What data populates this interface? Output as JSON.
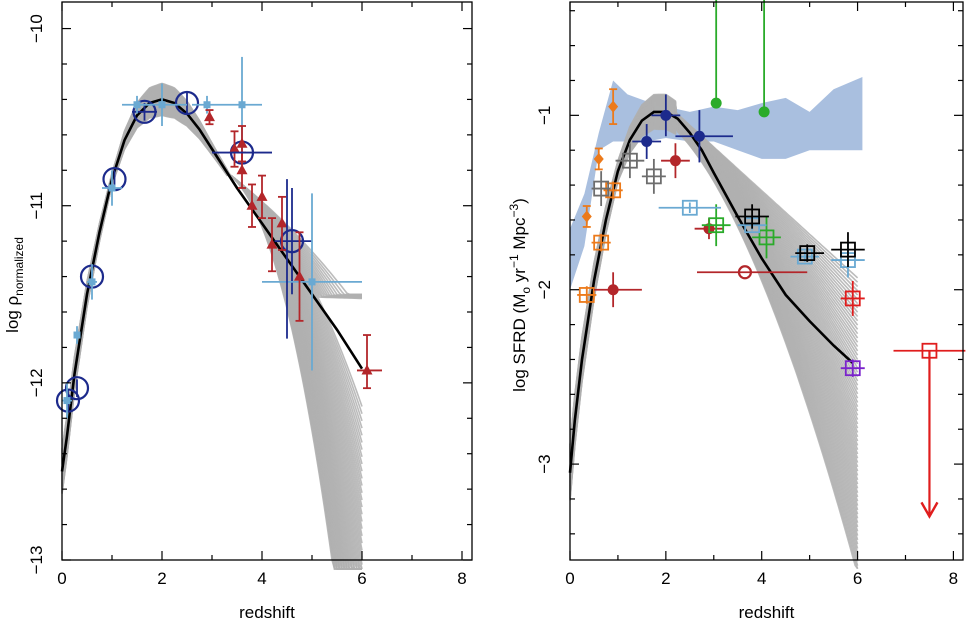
{
  "chart_data": [
    {
      "type": "scatter",
      "xlabel": "redshift",
      "ylabel": "log ρ",
      "ylabel_sub": "normalized",
      "xlim": [
        0,
        8.2
      ],
      "ylim": [
        -13,
        -9.85
      ],
      "xticks": [
        0,
        2,
        4,
        6,
        8
      ],
      "xtick_labels": [
        "0",
        "2",
        "4",
        "6",
        "8"
      ],
      "yticks": [
        -13,
        -12,
        -11,
        -10
      ],
      "ytick_labels": [
        "−13",
        "−12",
        "−11",
        "−10"
      ],
      "grid": false,
      "colors": {
        "model_band": "#b0b0b0",
        "best_fit": "#000000",
        "circles": "#1c2a8c",
        "light_blue": "#6aa9d2",
        "triangles": "#b3262a",
        "navy": "#1c2a8c"
      },
      "best_fit": {
        "x": [
          0.0,
          0.1,
          0.25,
          0.5,
          0.75,
          1.0,
          1.25,
          1.5,
          1.75,
          2.0,
          2.25,
          2.5,
          2.75,
          3.0,
          3.5,
          4.0,
          4.5,
          5.0,
          5.5,
          6.0
        ],
        "y": [
          -12.5,
          -12.3,
          -11.95,
          -11.5,
          -11.15,
          -10.85,
          -10.63,
          -10.49,
          -10.42,
          -10.4,
          -10.42,
          -10.48,
          -10.57,
          -10.68,
          -10.9,
          -11.1,
          -11.3,
          -11.5,
          -11.7,
          -11.92
        ]
      },
      "series": [
        {
          "marker": "open-circle",
          "color": "#1c2a8c",
          "points": [
            {
              "x": 0.12,
              "y": -12.1,
              "xerr": [
                0.0,
                0.0
              ],
              "yerr": [
                0.06,
                0.06
              ]
            },
            {
              "x": 0.3,
              "y": -12.03,
              "xerr": [
                0.0,
                0.0
              ],
              "yerr": [
                0.05,
                0.05
              ]
            },
            {
              "x": 0.6,
              "y": -11.4,
              "xerr": [
                0.0,
                0.0
              ],
              "yerr": [
                0.05,
                0.05
              ]
            },
            {
              "x": 1.05,
              "y": -10.85,
              "xerr": [
                0.0,
                0.0
              ],
              "yerr": [
                0.05,
                0.05
              ]
            },
            {
              "x": 1.65,
              "y": -10.47,
              "xerr": [
                0.25,
                0.25
              ],
              "yerr": [
                0.05,
                0.05
              ]
            },
            {
              "x": 2.5,
              "y": -10.42,
              "xerr": [
                0.0,
                0.0
              ],
              "yerr": [
                0.06,
                0.06
              ]
            },
            {
              "x": 3.6,
              "y": -10.7,
              "xerr": [
                0.0,
                0.0
              ],
              "yerr": [
                0.05,
                0.05
              ]
            },
            {
              "x": 4.6,
              "y": -11.2,
              "xerr": [
                0.35,
                0.4
              ],
              "yerr": [
                0.3,
                0.3
              ]
            }
          ]
        },
        {
          "marker": "filled-square",
          "color": "#6aa9d2",
          "points": [
            {
              "x": 0.1,
              "y": -12.1,
              "xerr": [
                0.1,
                0.1
              ],
              "yerr": [
                0.1,
                0.1
              ]
            },
            {
              "x": 0.3,
              "y": -11.73,
              "xerr": [
                0.05,
                0.05
              ],
              "yerr": [
                0.05,
                0.05
              ]
            },
            {
              "x": 0.6,
              "y": -11.43,
              "xerr": [
                0.1,
                0.1
              ],
              "yerr": [
                0.1,
                0.1
              ]
            },
            {
              "x": 1.0,
              "y": -10.9,
              "xerr": [
                0.2,
                0.2
              ],
              "yerr": [
                0.1,
                0.1
              ]
            },
            {
              "x": 1.5,
              "y": -10.43,
              "xerr": [
                0.3,
                0.3
              ],
              "yerr": [
                0.05,
                0.05
              ]
            },
            {
              "x": 2.0,
              "y": -10.43,
              "xerr": [
                0.5,
                0.5
              ],
              "yerr": [
                0.12,
                0.12
              ]
            },
            {
              "x": 2.9,
              "y": -10.43,
              "xerr": [
                0.3,
                0.3
              ],
              "yerr": [
                0.05,
                0.05
              ]
            },
            {
              "x": 3.6,
              "y": -10.43,
              "xerr": [
                0.4,
                0.4
              ],
              "yerr": [
                0.27,
                0.27
              ]
            },
            {
              "x": 5.0,
              "y": -11.43,
              "xerr": [
                1.0,
                1.0
              ],
              "yerr": [
                0.5,
                0.5
              ]
            }
          ]
        },
        {
          "marker": "filled-triangle",
          "color": "#b3262a",
          "points": [
            {
              "x": 2.95,
              "y": -10.5,
              "xerr": [
                0.0,
                0.0
              ],
              "yerr": [
                0.04,
                0.04
              ]
            },
            {
              "x": 3.45,
              "y": -10.68,
              "xerr": [
                0.0,
                0.0
              ],
              "yerr": [
                0.1,
                0.1
              ]
            },
            {
              "x": 3.6,
              "y": -10.65,
              "xerr": [
                0.0,
                0.0
              ],
              "yerr": [
                0.1,
                0.1
              ]
            },
            {
              "x": 3.6,
              "y": -10.8,
              "xerr": [
                0.0,
                0.0
              ],
              "yerr": [
                0.1,
                0.1
              ]
            },
            {
              "x": 3.8,
              "y": -11.0,
              "xerr": [
                0.0,
                0.0
              ],
              "yerr": [
                0.12,
                0.12
              ]
            },
            {
              "x": 4.0,
              "y": -10.95,
              "xerr": [
                0.0,
                0.0
              ],
              "yerr": [
                0.12,
                0.12
              ]
            },
            {
              "x": 4.2,
              "y": -11.22,
              "xerr": [
                0.0,
                0.0
              ],
              "yerr": [
                0.15,
                0.15
              ]
            },
            {
              "x": 4.4,
              "y": -11.1,
              "xerr": [
                0.0,
                0.0
              ],
              "yerr": [
                0.15,
                0.15
              ]
            },
            {
              "x": 4.75,
              "y": -11.4,
              "xerr": [
                0.0,
                0.0
              ],
              "yerr": [
                0.25,
                0.25
              ]
            },
            {
              "x": 6.1,
              "y": -11.93,
              "xerr": [
                0.2,
                0.3
              ],
              "yerr": [
                0.1,
                0.2
              ]
            }
          ]
        },
        {
          "marker": "cross-only",
          "color": "#1c2a8c",
          "points": [
            {
              "x": 3.6,
              "y": -10.7,
              "xerr": [
                0.6,
                0.6
              ],
              "yerr": [
                0.0,
                0.0
              ]
            },
            {
              "x": 4.5,
              "y": -11.3,
              "xerr": [
                0.0,
                0.0
              ],
              "yerr": [
                0.45,
                0.45
              ]
            }
          ]
        }
      ]
    },
    {
      "type": "scatter",
      "xlabel": "redshift",
      "ylabel": "log SFRD (Mₒ yr⁻¹ Mpc⁻³)",
      "ylabel_parts": {
        "prefix": "log SFRD (M",
        "sub": "o",
        "mid1": " yr",
        "sup1": "−1",
        "mid2": " Mpc",
        "sup2": "−3",
        "suffix": ")"
      },
      "xlim": [
        0,
        8.2
      ],
      "ylim": [
        -3.55,
        -0.35
      ],
      "xticks": [
        0,
        2,
        4,
        6,
        8
      ],
      "xtick_labels": [
        "0",
        "2",
        "4",
        "6",
        "8"
      ],
      "yticks": [
        -3,
        -2,
        -1
      ],
      "ytick_labels": [
        "−3",
        "−2",
        "−1"
      ],
      "grid": false,
      "colors": {
        "model_band": "#b0b0b0",
        "blue_band": "#a9bfdf",
        "best_fit": "#000000"
      },
      "best_fit": {
        "x": [
          0.0,
          0.1,
          0.25,
          0.5,
          0.75,
          1.0,
          1.25,
          1.5,
          1.75,
          2.0,
          2.25,
          2.5,
          2.75,
          3.0,
          3.5,
          4.0,
          4.5,
          5.0,
          5.5,
          5.9
        ],
        "y": [
          -3.05,
          -2.75,
          -2.4,
          -1.95,
          -1.6,
          -1.32,
          -1.14,
          -1.03,
          -0.98,
          -0.98,
          -1.02,
          -1.1,
          -1.2,
          -1.33,
          -1.58,
          -1.82,
          -2.03,
          -2.18,
          -2.32,
          -2.42
        ]
      },
      "series": [
        {
          "marker": "filled-diamond",
          "color": "#ec7a1b",
          "points": [
            {
              "x": 0.35,
              "y": -1.58,
              "xerr": [
                0.0,
                0.0
              ],
              "yerr": [
                0.06,
                0.06
              ]
            },
            {
              "x": 0.6,
              "y": -1.25,
              "xerr": [
                0.0,
                0.0
              ],
              "yerr": [
                0.06,
                0.06
              ]
            },
            {
              "x": 0.9,
              "y": -0.95,
              "xerr": [
                0.0,
                0.0
              ],
              "yerr": [
                0.1,
                0.1
              ]
            }
          ]
        },
        {
          "marker": "open-square",
          "color": "#ec7a1b",
          "points": [
            {
              "x": 0.35,
              "y": -2.03,
              "xerr": [
                0.2,
                0.2
              ],
              "yerr": [
                0.05,
                0.05
              ]
            },
            {
              "x": 0.65,
              "y": -1.73,
              "xerr": [
                0.2,
                0.2
              ],
              "yerr": [
                0.05,
                0.05
              ]
            },
            {
              "x": 0.9,
              "y": -1.43,
              "xerr": [
                0.2,
                0.2
              ],
              "yerr": [
                0.05,
                0.05
              ]
            }
          ]
        },
        {
          "marker": "open-square",
          "color": "#6d6d6d",
          "points": [
            {
              "x": 0.65,
              "y": -1.42,
              "xerr": [
                0.2,
                0.2
              ],
              "yerr": [
                0.1,
                0.1
              ]
            },
            {
              "x": 1.25,
              "y": -1.26,
              "xerr": [
                0.3,
                0.3
              ],
              "yerr": [
                0.1,
                0.1
              ]
            },
            {
              "x": 1.75,
              "y": -1.35,
              "xerr": [
                0.25,
                0.25
              ],
              "yerr": [
                0.1,
                0.1
              ]
            }
          ]
        },
        {
          "marker": "filled-circle",
          "color": "#1c2a8c",
          "points": [
            {
              "x": 1.6,
              "y": -1.15,
              "xerr": [
                0.3,
                0.3
              ],
              "yerr": [
                0.1,
                0.1
              ]
            },
            {
              "x": 2.0,
              "y": -1.0,
              "xerr": [
                0.3,
                0.3
              ],
              "yerr": [
                0.12,
                0.12
              ]
            },
            {
              "x": 2.7,
              "y": -1.12,
              "xerr": [
                0.5,
                0.7
              ],
              "yerr": [
                0.15,
                0.15
              ]
            }
          ]
        },
        {
          "marker": "filled-circle",
          "color": "#b3262a",
          "points": [
            {
              "x": 0.9,
              "y": -2.0,
              "xerr": [
                0.4,
                0.6
              ],
              "yerr": [
                0.1,
                0.1
              ]
            },
            {
              "x": 2.2,
              "y": -1.26,
              "xerr": [
                0.3,
                0.3
              ],
              "yerr": [
                0.1,
                0.1
              ]
            },
            {
              "x": 2.9,
              "y": -1.65,
              "xerr": [
                0.3,
                0.3
              ],
              "yerr": [
                0.06,
                0.06
              ]
            }
          ]
        },
        {
          "marker": "open-circle",
          "color": "#b3262a",
          "points": [
            {
              "x": 3.65,
              "y": -1.9,
              "xerr": [
                1.0,
                1.3
              ],
              "yerr": [
                0.0,
                0.0
              ]
            }
          ]
        },
        {
          "marker": "filled-circle",
          "color": "#2aab2a",
          "points": [
            {
              "x": 3.05,
              "y": -0.93,
              "xerr": [
                0.0,
                0.0
              ],
              "yerr": [
                0.0,
                0.73
              ]
            },
            {
              "x": 4.05,
              "y": -0.98,
              "xerr": [
                0.0,
                0.0
              ],
              "yerr": [
                0.0,
                0.72
              ]
            }
          ]
        },
        {
          "marker": "open-square",
          "color": "#2aab2a",
          "points": [
            {
              "x": 3.05,
              "y": -1.63,
              "xerr": [
                0.3,
                0.3
              ],
              "yerr": [
                0.12,
                0.12
              ]
            },
            {
              "x": 4.1,
              "y": -1.7,
              "xerr": [
                0.3,
                0.3
              ],
              "yerr": [
                0.12,
                0.12
              ]
            }
          ]
        },
        {
          "marker": "open-square",
          "color": "#6aa9d2",
          "points": [
            {
              "x": 2.5,
              "y": -1.53,
              "xerr": [
                0.65,
                0.65
              ],
              "yerr": [
                0.03,
                0.03
              ]
            },
            {
              "x": 3.8,
              "y": -1.63,
              "xerr": [
                0.3,
                0.3
              ],
              "yerr": [
                0.03,
                0.03
              ]
            },
            {
              "x": 4.9,
              "y": -1.81,
              "xerr": [
                0.3,
                0.3
              ],
              "yerr": [
                0.03,
                0.03
              ]
            },
            {
              "x": 5.8,
              "y": -1.83,
              "xerr": [
                0.35,
                0.35
              ],
              "yerr": [
                0.1,
                0.1
              ]
            }
          ]
        },
        {
          "marker": "open-square",
          "color": "#000000",
          "points": [
            {
              "x": 3.8,
              "y": -1.58,
              "xerr": [
                0.35,
                0.35
              ],
              "yerr": [
                0.07,
                0.07
              ]
            },
            {
              "x": 4.95,
              "y": -1.79,
              "xerr": [
                0.25,
                0.35
              ],
              "yerr": [
                0.05,
                0.05
              ]
            },
            {
              "x": 5.8,
              "y": -1.77,
              "xerr": [
                0.35,
                0.35
              ],
              "yerr": [
                0.1,
                0.1
              ]
            }
          ]
        },
        {
          "marker": "open-square",
          "color": "#e01d1d",
          "points": [
            {
              "x": 5.9,
              "y": -2.05,
              "xerr": [
                0.25,
                0.25
              ],
              "yerr": [
                0.1,
                0.1
              ]
            },
            {
              "x": 7.5,
              "y": -2.35,
              "xerr": [
                0.75,
                0.75
              ],
              "yerr": [
                0.2,
                0.0
              ],
              "upper_limit": true,
              "arrow_to": -3.3
            }
          ]
        },
        {
          "marker": "open-square",
          "color": "#7a22cc",
          "points": [
            {
              "x": 5.9,
              "y": -2.45,
              "xerr": [
                0.25,
                0.25
              ],
              "yerr": [
                0.05,
                0.05
              ]
            }
          ]
        }
      ]
    }
  ]
}
